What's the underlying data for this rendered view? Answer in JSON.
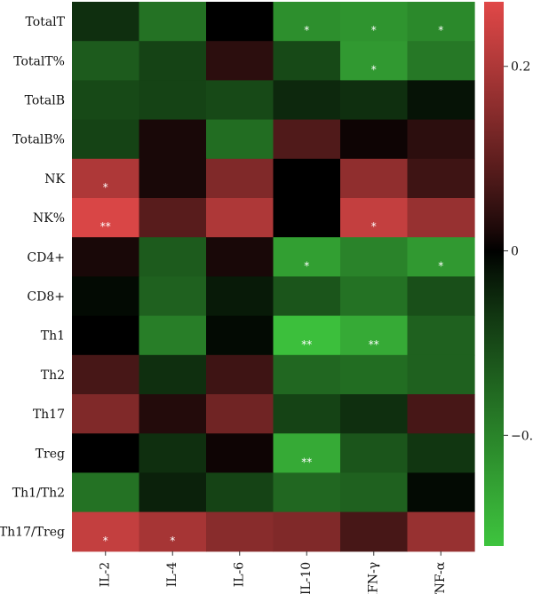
{
  "chart_data": {
    "type": "heatmap",
    "rows": [
      "TotalT",
      "TotalT%",
      "TotalB",
      "TotalB%",
      "NK",
      "NK%",
      "CD4+",
      "CD8+",
      "Th1",
      "Th2",
      "Th17",
      "Treg",
      "Th1/Th2",
      "Th17/Treg"
    ],
    "columns": [
      "IL-2",
      "IL-4",
      "IL-6",
      "IL-10",
      "IFN-γ",
      "TNF-α"
    ],
    "values": [
      [
        -0.06,
        -0.17,
        0.0,
        -0.22,
        -0.23,
        -0.21
      ],
      [
        -0.13,
        -0.09,
        0.04,
        -0.1,
        -0.24,
        -0.18
      ],
      [
        -0.1,
        -0.09,
        -0.1,
        -0.05,
        -0.06,
        -0.02
      ],
      [
        -0.09,
        0.02,
        -0.16,
        0.08,
        0.01,
        0.04
      ],
      [
        0.2,
        0.02,
        0.14,
        0.0,
        0.16,
        0.06
      ],
      [
        0.26,
        0.09,
        0.2,
        0.0,
        0.23,
        0.17
      ],
      [
        0.02,
        -0.13,
        0.02,
        -0.25,
        -0.2,
        -0.24
      ],
      [
        -0.01,
        -0.14,
        -0.03,
        -0.12,
        -0.17,
        -0.11
      ],
      [
        0.0,
        -0.19,
        -0.01,
        -0.31,
        -0.27,
        -0.14
      ],
      [
        0.07,
        -0.06,
        0.06,
        -0.15,
        -0.16,
        -0.14
      ],
      [
        0.14,
        0.03,
        0.12,
        -0.09,
        -0.06,
        0.07
      ],
      [
        0.0,
        -0.06,
        0.01,
        -0.27,
        -0.12,
        -0.07
      ],
      [
        -0.17,
        -0.04,
        -0.09,
        -0.15,
        -0.14,
        -0.01
      ],
      [
        0.23,
        0.19,
        0.15,
        0.14,
        0.07,
        0.17
      ]
    ],
    "significance": [
      [
        "",
        "",
        "",
        "*",
        "*",
        "*"
      ],
      [
        "",
        "",
        "",
        "",
        "*",
        ""
      ],
      [
        "",
        "",
        "",
        "",
        "",
        ""
      ],
      [
        "",
        "",
        "",
        "",
        "",
        ""
      ],
      [
        "*",
        "",
        "",
        "",
        "",
        ""
      ],
      [
        "**",
        "",
        "",
        "",
        "*",
        ""
      ],
      [
        "",
        "",
        "",
        "*",
        "",
        "*"
      ],
      [
        "",
        "",
        "",
        "",
        "",
        ""
      ],
      [
        "",
        "",
        "",
        "**",
        "**",
        ""
      ],
      [
        "",
        "",
        "",
        "",
        "",
        ""
      ],
      [
        "",
        "",
        "",
        "",
        "",
        ""
      ],
      [
        "",
        "",
        "",
        "**",
        "",
        ""
      ],
      [
        "",
        "",
        "",
        "",
        "",
        ""
      ],
      [
        "*",
        "*",
        "",
        "",
        "",
        ""
      ]
    ],
    "colorbar": {
      "min": -0.32,
      "max": 0.27,
      "ticks": [
        0.2,
        0,
        -0.2
      ],
      "tick_labels": [
        "0.2",
        "0",
        "−0.2"
      ],
      "colors": {
        "negative": "#3ec43e",
        "zero": "#000000",
        "positive": "#e04848"
      }
    },
    "grid": false,
    "legend": "right"
  }
}
